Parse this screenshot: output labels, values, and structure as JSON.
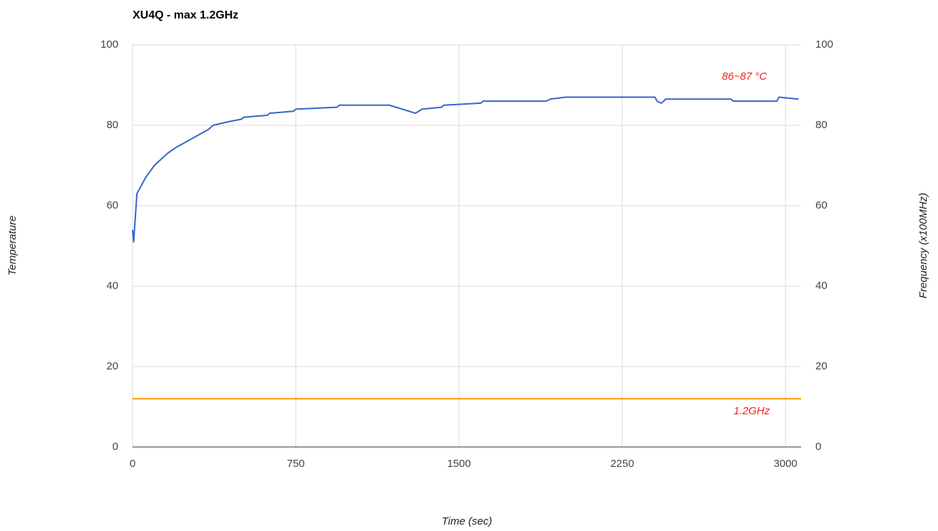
{
  "chart_data": {
    "type": "line",
    "title": "XU4Q - max 1.2GHz",
    "x_label": "Time (sec)",
    "y_label": "Temperature",
    "y2_label": "Frequency (x100MHz)",
    "annotations": [
      "86~87 °C",
      "1.2GHz"
    ],
    "xlim": [
      0,
      3072
    ],
    "xticks": [
      0,
      750,
      1500,
      2250,
      3000
    ],
    "ylim": [
      0,
      100
    ],
    "yticks": [
      0,
      20,
      40,
      60,
      80,
      100
    ],
    "y2lim": [
      0,
      100
    ],
    "y2ticks": [
      0,
      20,
      40,
      60,
      80,
      100
    ],
    "grid": true,
    "series": [
      {
        "name": "Temperature",
        "color": "#3366cc",
        "axis": "y",
        "x": [
          0,
          5,
          10,
          20,
          40,
          60,
          80,
          100,
          130,
          160,
          200,
          250,
          300,
          350,
          370,
          450,
          500,
          510,
          620,
          630,
          740,
          750,
          940,
          950,
          1180,
          1300,
          1330,
          1420,
          1430,
          1600,
          1610,
          1900,
          1920,
          1990,
          2400,
          2410,
          2430,
          2450,
          2750,
          2760,
          2960,
          2970,
          3060
        ],
        "values": [
          54,
          51,
          55,
          63,
          65,
          67,
          68.5,
          70,
          71.5,
          73,
          74.5,
          76,
          77.5,
          79,
          80,
          81,
          81.5,
          82,
          82.5,
          83,
          83.5,
          84,
          84.5,
          85,
          85,
          83,
          84,
          84.5,
          85,
          85.5,
          86,
          86,
          86.5,
          87,
          87,
          86,
          85.5,
          86.5,
          86.5,
          86,
          86,
          87,
          86.5
        ]
      },
      {
        "name": "Frequency",
        "color": "#ff9900",
        "axis": "y2",
        "x": [
          0,
          3072
        ],
        "values": [
          12,
          12
        ]
      }
    ]
  }
}
